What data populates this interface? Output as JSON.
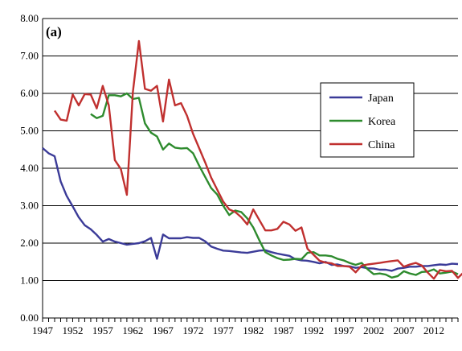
{
  "chart_data": {
    "type": "line",
    "panel_label": "(a)",
    "xlabel": "",
    "ylabel": "",
    "ylim": [
      0,
      8
    ],
    "xlim": [
      1947,
      2016
    ],
    "y_ticks": [
      "0.00",
      "1.00",
      "2.00",
      "3.00",
      "4.00",
      "5.00",
      "6.00",
      "7.00",
      "8.00"
    ],
    "x_ticks": [
      "1947",
      "1952",
      "1957",
      "1962",
      "1967",
      "1972",
      "1977",
      "1982",
      "1987",
      "1992",
      "1997",
      "2002",
      "2007",
      "2012"
    ],
    "grid": "horizontal",
    "legend_position": "right",
    "series": [
      {
        "name": "Japan",
        "color": "#3b3b98",
        "points": [
          [
            1947,
            4.54
          ],
          [
            1948,
            4.4
          ],
          [
            1949,
            4.32
          ],
          [
            1950,
            3.65
          ],
          [
            1951,
            3.26
          ],
          [
            1952,
            2.98
          ],
          [
            1953,
            2.69
          ],
          [
            1954,
            2.48
          ],
          [
            1955,
            2.37
          ],
          [
            1956,
            2.22
          ],
          [
            1957,
            2.04
          ],
          [
            1958,
            2.11
          ],
          [
            1959,
            2.04
          ],
          [
            1960,
            2.0
          ],
          [
            1961,
            1.96
          ],
          [
            1962,
            1.98
          ],
          [
            1963,
            2.0
          ],
          [
            1964,
            2.05
          ],
          [
            1965,
            2.14
          ],
          [
            1966,
            1.58
          ],
          [
            1967,
            2.23
          ],
          [
            1968,
            2.13
          ],
          [
            1969,
            2.13
          ],
          [
            1970,
            2.13
          ],
          [
            1971,
            2.16
          ],
          [
            1972,
            2.14
          ],
          [
            1973,
            2.14
          ],
          [
            1974,
            2.05
          ],
          [
            1975,
            1.91
          ],
          [
            1976,
            1.85
          ],
          [
            1977,
            1.8
          ],
          [
            1978,
            1.79
          ],
          [
            1979,
            1.77
          ],
          [
            1980,
            1.75
          ],
          [
            1981,
            1.74
          ],
          [
            1982,
            1.77
          ],
          [
            1983,
            1.8
          ],
          [
            1984,
            1.81
          ],
          [
            1985,
            1.76
          ],
          [
            1986,
            1.72
          ],
          [
            1987,
            1.69
          ],
          [
            1988,
            1.66
          ],
          [
            1989,
            1.57
          ],
          [
            1990,
            1.54
          ],
          [
            1991,
            1.53
          ],
          [
            1992,
            1.5
          ],
          [
            1993,
            1.46
          ],
          [
            1994,
            1.5
          ],
          [
            1995,
            1.42
          ],
          [
            1996,
            1.43
          ],
          [
            1997,
            1.39
          ],
          [
            1998,
            1.38
          ],
          [
            1999,
            1.34
          ],
          [
            2000,
            1.36
          ],
          [
            2001,
            1.33
          ],
          [
            2002,
            1.32
          ],
          [
            2003,
            1.29
          ],
          [
            2004,
            1.29
          ],
          [
            2005,
            1.26
          ],
          [
            2006,
            1.32
          ],
          [
            2007,
            1.34
          ],
          [
            2008,
            1.37
          ],
          [
            2009,
            1.37
          ],
          [
            2010,
            1.39
          ],
          [
            2011,
            1.39
          ],
          [
            2012,
            1.41
          ],
          [
            2013,
            1.43
          ],
          [
            2014,
            1.42
          ],
          [
            2015,
            1.45
          ],
          [
            2016,
            1.44
          ]
        ]
      },
      {
        "name": "Korea",
        "color": "#2e8b2e",
        "points": [
          [
            1955,
            5.45
          ],
          [
            1956,
            5.34
          ],
          [
            1957,
            5.4
          ],
          [
            1958,
            5.95
          ],
          [
            1959,
            5.95
          ],
          [
            1960,
            5.92
          ],
          [
            1961,
            6.0
          ],
          [
            1962,
            5.85
          ],
          [
            1963,
            5.88
          ],
          [
            1964,
            5.2
          ],
          [
            1965,
            4.95
          ],
          [
            1966,
            4.85
          ],
          [
            1967,
            4.5
          ],
          [
            1968,
            4.66
          ],
          [
            1969,
            4.55
          ],
          [
            1970,
            4.53
          ],
          [
            1971,
            4.54
          ],
          [
            1972,
            4.4
          ],
          [
            1973,
            4.07
          ],
          [
            1974,
            3.77
          ],
          [
            1975,
            3.47
          ],
          [
            1976,
            3.3
          ],
          [
            1977,
            3.0
          ],
          [
            1978,
            2.75
          ],
          [
            1979,
            2.87
          ],
          [
            1980,
            2.83
          ],
          [
            1981,
            2.66
          ],
          [
            1982,
            2.42
          ],
          [
            1983,
            2.08
          ],
          [
            1984,
            1.76
          ],
          [
            1985,
            1.67
          ],
          [
            1986,
            1.6
          ],
          [
            1987,
            1.55
          ],
          [
            1988,
            1.56
          ],
          [
            1989,
            1.58
          ],
          [
            1990,
            1.57
          ],
          [
            1991,
            1.74
          ],
          [
            1992,
            1.76
          ],
          [
            1993,
            1.67
          ],
          [
            1994,
            1.67
          ],
          [
            1995,
            1.65
          ],
          [
            1996,
            1.58
          ],
          [
            1997,
            1.54
          ],
          [
            1998,
            1.47
          ],
          [
            1999,
            1.42
          ],
          [
            2000,
            1.47
          ],
          [
            2001,
            1.3
          ],
          [
            2002,
            1.17
          ],
          [
            2003,
            1.19
          ],
          [
            2004,
            1.16
          ],
          [
            2005,
            1.08
          ],
          [
            2006,
            1.12
          ],
          [
            2007,
            1.25
          ],
          [
            2008,
            1.19
          ],
          [
            2009,
            1.15
          ],
          [
            2010,
            1.23
          ],
          [
            2011,
            1.24
          ],
          [
            2012,
            1.3
          ],
          [
            2013,
            1.19
          ],
          [
            2014,
            1.21
          ],
          [
            2015,
            1.24
          ],
          [
            2016,
            1.17
          ]
        ]
      },
      {
        "name": "China",
        "color": "#c0302f",
        "points": [
          [
            1949,
            5.54
          ],
          [
            1950,
            5.3
          ],
          [
            1951,
            5.27
          ],
          [
            1952,
            5.97
          ],
          [
            1953,
            5.68
          ],
          [
            1954,
            5.98
          ],
          [
            1955,
            5.97
          ],
          [
            1956,
            5.6
          ],
          [
            1957,
            6.2
          ],
          [
            1958,
            5.68
          ],
          [
            1959,
            4.22
          ],
          [
            1960,
            3.98
          ],
          [
            1961,
            3.29
          ],
          [
            1962,
            6.04
          ],
          [
            1963,
            7.4
          ],
          [
            1964,
            6.12
          ],
          [
            1965,
            6.07
          ],
          [
            1966,
            6.2
          ],
          [
            1967,
            5.25
          ],
          [
            1968,
            6.37
          ],
          [
            1969,
            5.68
          ],
          [
            1970,
            5.74
          ],
          [
            1971,
            5.4
          ],
          [
            1972,
            4.92
          ],
          [
            1973,
            4.54
          ],
          [
            1974,
            4.16
          ],
          [
            1975,
            3.75
          ],
          [
            1976,
            3.43
          ],
          [
            1977,
            3.11
          ],
          [
            1978,
            2.9
          ],
          [
            1979,
            2.83
          ],
          [
            1980,
            2.69
          ],
          [
            1981,
            2.5
          ],
          [
            1982,
            2.9
          ],
          [
            1983,
            2.62
          ],
          [
            1984,
            2.34
          ],
          [
            1985,
            2.34
          ],
          [
            1986,
            2.38
          ],
          [
            1987,
            2.57
          ],
          [
            1988,
            2.5
          ],
          [
            1989,
            2.33
          ],
          [
            1990,
            2.42
          ],
          [
            1991,
            1.85
          ],
          [
            1992,
            1.69
          ],
          [
            1993,
            1.53
          ],
          [
            1994,
            1.48
          ],
          [
            1995,
            1.46
          ],
          [
            1996,
            1.39
          ],
          [
            1997,
            1.39
          ],
          [
            1998,
            1.37
          ],
          [
            1999,
            1.22
          ],
          [
            2000,
            1.4
          ],
          [
            2001,
            1.43
          ],
          [
            2002,
            1.45
          ],
          [
            2003,
            1.47
          ],
          [
            2004,
            1.5
          ],
          [
            2005,
            1.52
          ],
          [
            2006,
            1.54
          ],
          [
            2007,
            1.37
          ],
          [
            2008,
            1.43
          ],
          [
            2009,
            1.47
          ],
          [
            2010,
            1.4
          ],
          [
            2011,
            1.21
          ],
          [
            2012,
            1.05
          ],
          [
            2013,
            1.28
          ],
          [
            2014,
            1.25
          ],
          [
            2015,
            1.26
          ],
          [
            2016,
            1.07
          ],
          [
            2017,
            1.23
          ]
        ]
      }
    ]
  }
}
